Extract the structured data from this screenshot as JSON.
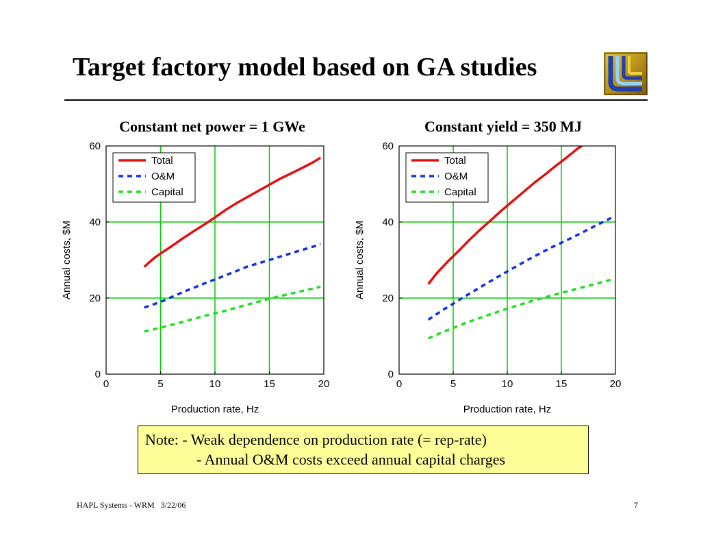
{
  "slide": {
    "title": "Target factory model based on GA studies",
    "footer_left": "HAPL Systems - WRM   3/22/06",
    "page_number": "7",
    "logo": {
      "colors": [
        "#c8a21e",
        "#1e3fb0",
        "#8fd3ff",
        "#f2d23c"
      ]
    }
  },
  "note": {
    "line1": "Note: - Weak dependence on production rate (= rep-rate)",
    "line2": "- Annual O&M costs exceed annual capital charges"
  },
  "chart_data": [
    {
      "type": "line",
      "title": "Constant net power = 1 GWe",
      "xlabel": "Production rate, Hz",
      "ylabel": "Annual costs, $M",
      "xlim": [
        0,
        20
      ],
      "ylim": [
        0,
        60
      ],
      "xticks": [
        "0",
        "5",
        "10",
        "15",
        "20"
      ],
      "yticks": [
        "0",
        "20",
        "40",
        "60"
      ],
      "grid": true,
      "grid_color": "#00cc00",
      "legend_position": "top-left",
      "series": [
        {
          "name": "Total",
          "color": "#e01010",
          "dash": "solid",
          "x": [
            3.5,
            4,
            4.5,
            5,
            6,
            7,
            8,
            9,
            10,
            11,
            12,
            13,
            14,
            15,
            16,
            17,
            18,
            19,
            19.7
          ],
          "y": [
            28.2,
            29.5,
            30.7,
            31.7,
            33.6,
            35.6,
            37.5,
            39.3,
            41.2,
            43.2,
            45.0,
            46.6,
            48.2,
            49.8,
            51.4,
            52.8,
            54.2,
            55.7,
            56.9
          ]
        },
        {
          "name": "O&M",
          "color": "#1030e0",
          "dash": "dashed",
          "x": [
            3.5,
            5,
            7,
            9,
            11,
            13,
            15,
            17,
            19,
            19.7
          ],
          "y": [
            17.5,
            19.0,
            21.5,
            23.8,
            26.0,
            28.3,
            30.0,
            31.8,
            33.5,
            34.2
          ]
        },
        {
          "name": "Capital",
          "color": "#22dd22",
          "dash": "dashed",
          "x": [
            3.5,
            5,
            7,
            9,
            11,
            13,
            15,
            17,
            19,
            19.7
          ],
          "y": [
            11.2,
            12.2,
            13.7,
            15.3,
            16.7,
            18.3,
            19.8,
            21.2,
            22.5,
            23.0
          ]
        }
      ]
    },
    {
      "type": "line",
      "title": "Constant yield = 350 MJ",
      "xlabel": "Production rate, Hz",
      "ylabel": "Annual costs, $M",
      "xlim": [
        0,
        20
      ],
      "ylim": [
        0,
        60
      ],
      "xticks": [
        "0",
        "5",
        "10",
        "15",
        "20"
      ],
      "yticks": [
        "0",
        "20",
        "40",
        "60"
      ],
      "grid": true,
      "grid_color": "#00cc00",
      "legend_position": "top-left",
      "series": [
        {
          "name": "Total",
          "color": "#e01010",
          "dash": "solid",
          "x": [
            2.7,
            3.5,
            4.5,
            5.5,
            6.5,
            7.5,
            8.5,
            9.5,
            10.5,
            11.5,
            12.5,
            13.5,
            14.5,
            15.5,
            16.5,
            16.9
          ],
          "y": [
            23.7,
            26.6,
            29.6,
            32.4,
            35.3,
            38.0,
            40.5,
            43.1,
            45.5,
            47.9,
            50.3,
            52.5,
            54.8,
            57.0,
            59.3,
            60.0
          ]
        },
        {
          "name": "O&M",
          "color": "#1030e0",
          "dash": "dashed",
          "x": [
            2.7,
            4,
            5,
            6,
            8,
            10,
            12,
            14,
            16,
            18,
            19.7
          ],
          "y": [
            14.3,
            16.8,
            18.5,
            20.3,
            23.7,
            27.0,
            30.2,
            33.2,
            35.9,
            38.8,
            41.2
          ]
        },
        {
          "name": "Capital",
          "color": "#22dd22",
          "dash": "dashed",
          "x": [
            2.7,
            4,
            6,
            8,
            10,
            12,
            14,
            16,
            18,
            19.7
          ],
          "y": [
            9.4,
            11.0,
            13.3,
            15.3,
            17.2,
            19.0,
            20.6,
            22.1,
            23.6,
            24.9
          ]
        }
      ]
    }
  ]
}
